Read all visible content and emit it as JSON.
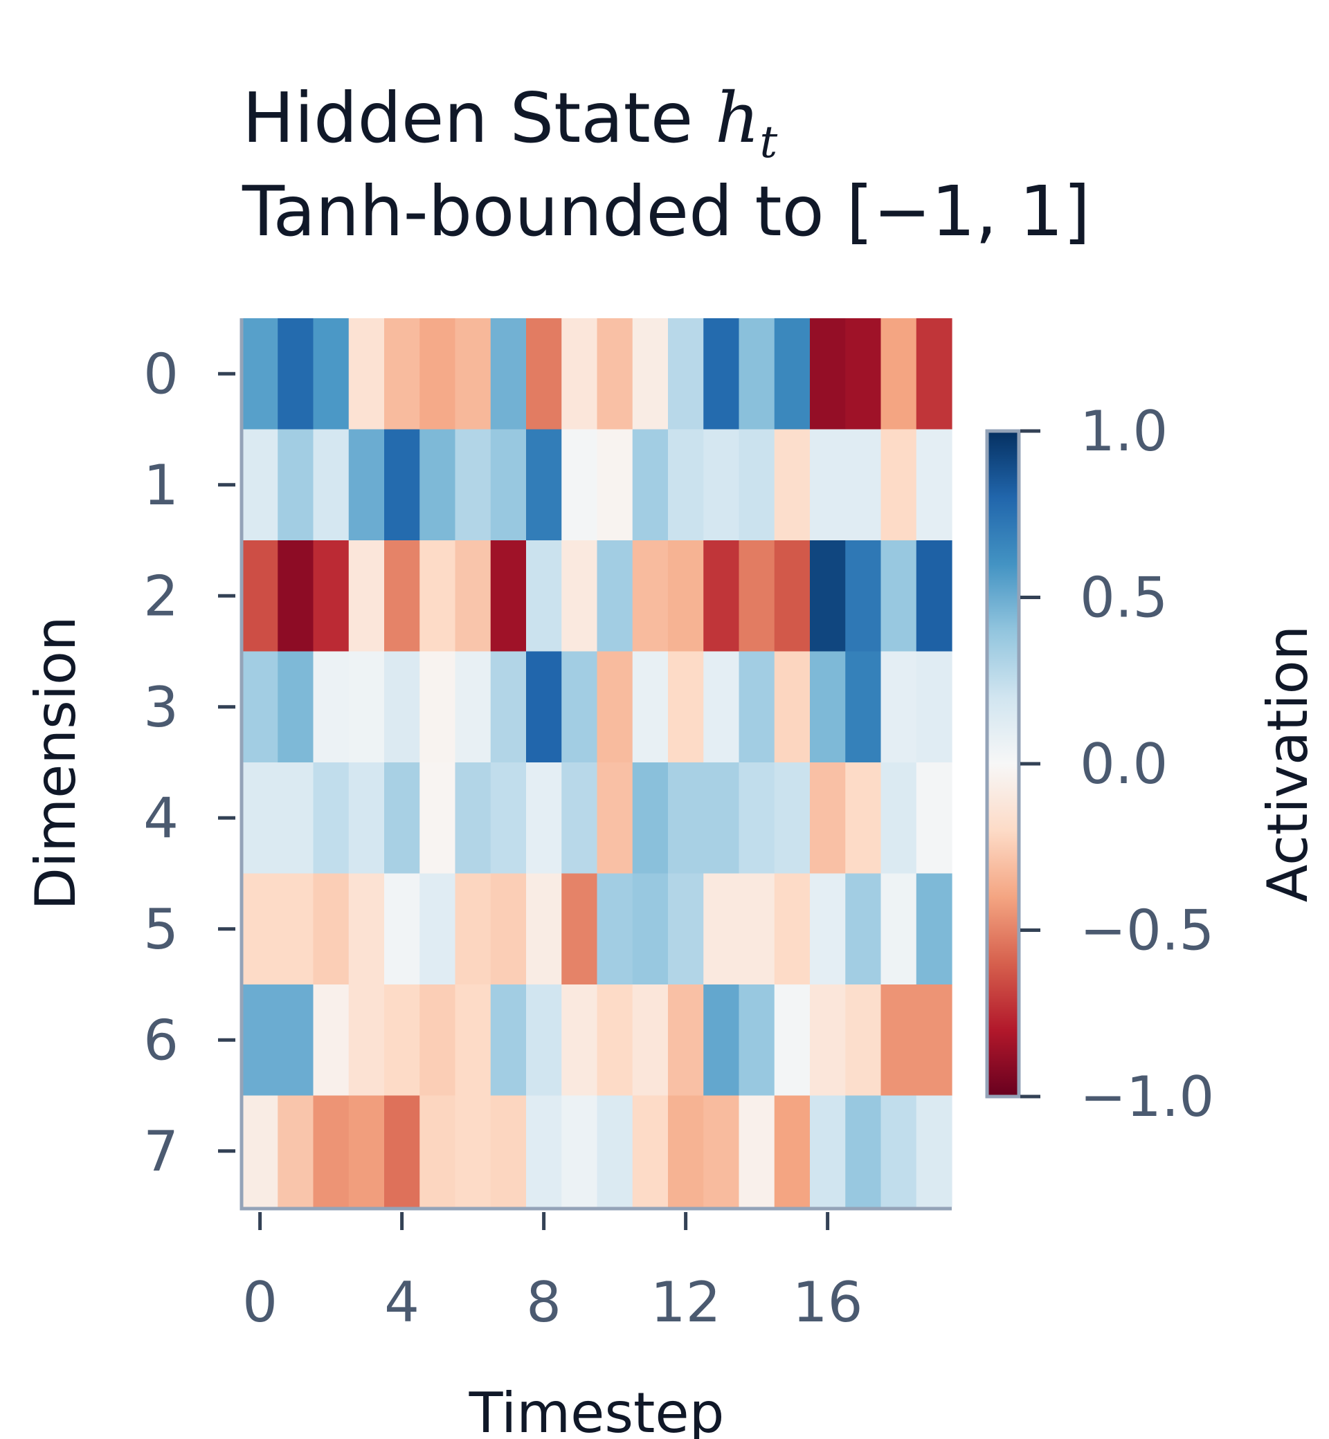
{
  "chart_data": {
    "type": "heatmap",
    "title": "Hidden State",
    "title_math": "h",
    "title_math_sub": "t",
    "subtitle": "Tanh-bounded to [−1, 1]",
    "xlabel": "Timestep",
    "ylabel": "Dimension",
    "x_ticks": [
      0,
      4,
      8,
      12,
      16
    ],
    "y_ticks": [
      0,
      1,
      2,
      3,
      4,
      5,
      6,
      7
    ],
    "x_count": 20,
    "y_count": 8,
    "colormap": "RdBu",
    "colorbar": {
      "label": "Activation",
      "range": [
        -1.0,
        1.0
      ],
      "ticks": [
        1.0,
        0.5,
        0.0,
        -0.5,
        -1.0
      ],
      "tick_labels": [
        "1.0",
        "0.5",
        "0.0",
        "−0.5",
        "−1.0"
      ]
    },
    "values": [
      [
        0.55,
        0.78,
        0.58,
        -0.15,
        -0.32,
        -0.38,
        -0.33,
        0.48,
        -0.52,
        -0.12,
        -0.3,
        -0.08,
        0.28,
        0.78,
        0.42,
        0.65,
        -0.88,
        -0.85,
        -0.4,
        -0.72
      ],
      [
        0.15,
        0.35,
        0.18,
        0.5,
        0.78,
        0.45,
        0.3,
        0.38,
        0.7,
        0.02,
        -0.03,
        0.35,
        0.22,
        0.18,
        0.22,
        -0.18,
        0.12,
        0.12,
        -0.2,
        0.1
      ],
      [
        -0.65,
        -0.9,
        -0.75,
        -0.12,
        -0.5,
        -0.2,
        -0.28,
        -0.85,
        0.22,
        -0.1,
        0.35,
        -0.32,
        -0.35,
        -0.72,
        -0.52,
        -0.62,
        0.92,
        0.72,
        0.38,
        0.82
      ],
      [
        0.35,
        0.45,
        0.06,
        0.05,
        0.14,
        -0.03,
        0.08,
        0.3,
        0.8,
        0.35,
        -0.32,
        0.08,
        -0.2,
        0.1,
        0.35,
        -0.22,
        0.45,
        0.68,
        0.1,
        0.12
      ],
      [
        0.15,
        0.15,
        0.25,
        0.18,
        0.33,
        -0.02,
        0.3,
        0.25,
        0.1,
        0.28,
        -0.3,
        0.42,
        0.33,
        0.33,
        0.25,
        0.22,
        -0.3,
        -0.2,
        0.15,
        0.02
      ],
      [
        -0.2,
        -0.2,
        -0.25,
        -0.15,
        0.03,
        0.12,
        -0.22,
        -0.25,
        -0.08,
        -0.5,
        0.35,
        0.38,
        0.3,
        -0.1,
        -0.1,
        -0.2,
        0.1,
        0.35,
        0.05,
        0.45
      ],
      [
        0.5,
        0.5,
        -0.05,
        -0.15,
        -0.2,
        -0.25,
        -0.2,
        0.35,
        0.2,
        -0.1,
        -0.2,
        -0.12,
        -0.3,
        0.52,
        0.38,
        0.02,
        -0.12,
        -0.18,
        -0.45,
        -0.45
      ],
      [
        -0.08,
        -0.28,
        -0.45,
        -0.42,
        -0.55,
        -0.22,
        -0.2,
        -0.22,
        0.12,
        0.06,
        0.15,
        -0.2,
        -0.35,
        -0.32,
        -0.05,
        -0.4,
        0.2,
        0.38,
        0.25,
        0.15
      ]
    ]
  }
}
